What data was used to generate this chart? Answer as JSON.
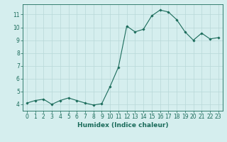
{
  "x": [
    0,
    1,
    2,
    3,
    4,
    5,
    6,
    7,
    8,
    9,
    10,
    11,
    12,
    13,
    14,
    15,
    16,
    17,
    18,
    19,
    20,
    21,
    22,
    23
  ],
  "y": [
    4.1,
    4.3,
    4.4,
    4.0,
    4.3,
    4.5,
    4.3,
    4.1,
    3.95,
    4.05,
    5.4,
    6.9,
    10.1,
    9.65,
    9.85,
    10.9,
    11.35,
    11.2,
    10.6,
    9.65,
    9.0,
    9.55,
    9.1,
    9.2
  ],
  "line_color": "#1a6b5a",
  "marker": "D",
  "marker_size": 1.8,
  "xlabel": "Humidex (Indice chaleur)",
  "ylim": [
    3.5,
    11.8
  ],
  "xlim": [
    -0.5,
    23.5
  ],
  "yticks": [
    4,
    5,
    6,
    7,
    8,
    9,
    10,
    11
  ],
  "xticks": [
    0,
    1,
    2,
    3,
    4,
    5,
    6,
    7,
    8,
    9,
    10,
    11,
    12,
    13,
    14,
    15,
    16,
    17,
    18,
    19,
    20,
    21,
    22,
    23
  ],
  "bg_color": "#d5eeee",
  "grid_color": "#b8d8d8",
  "tick_label_fontsize": 5.5,
  "xlabel_fontsize": 6.5,
  "line_width": 0.8
}
